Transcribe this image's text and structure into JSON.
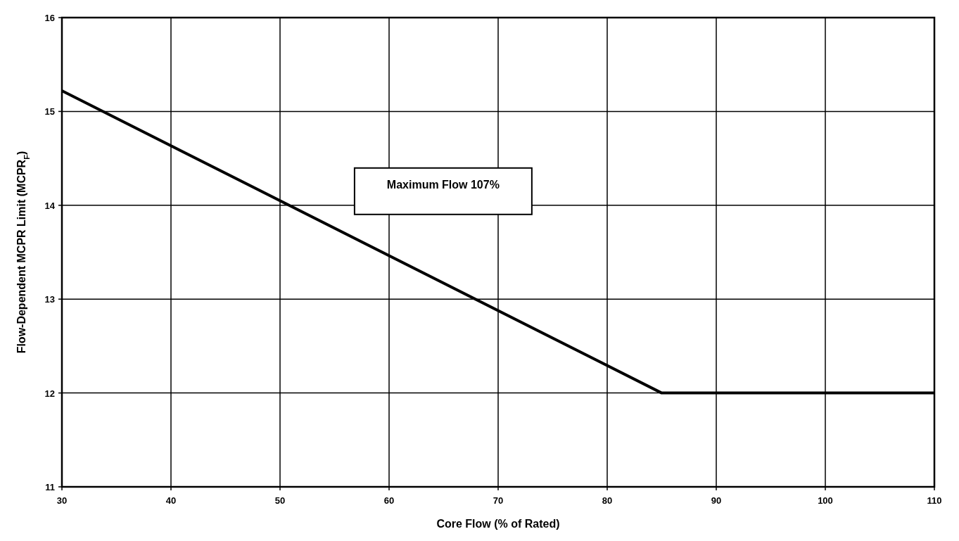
{
  "chart_data": {
    "type": "line",
    "xlabel": "Core Flow (% of Rated)",
    "ylabel": "Flow-Dependent MCPR Limit (MCPR$_{F}$)",
    "x": [
      30,
      85,
      110
    ],
    "series": [
      {
        "color": "#000000",
        "values": [
          15.22,
          12.0,
          12.0
        ]
      }
    ],
    "xlim": [
      30,
      110
    ],
    "xticks": [
      30,
      40,
      50,
      60,
      70,
      80,
      90,
      100,
      110
    ],
    "ylim": [
      11,
      16
    ],
    "yticks": [
      11,
      12,
      13,
      14,
      15,
      16
    ],
    "grid": true,
    "marker": "none",
    "line_style": "solid",
    "annotations": [
      "Maximum Flow 107%"
    ]
  }
}
